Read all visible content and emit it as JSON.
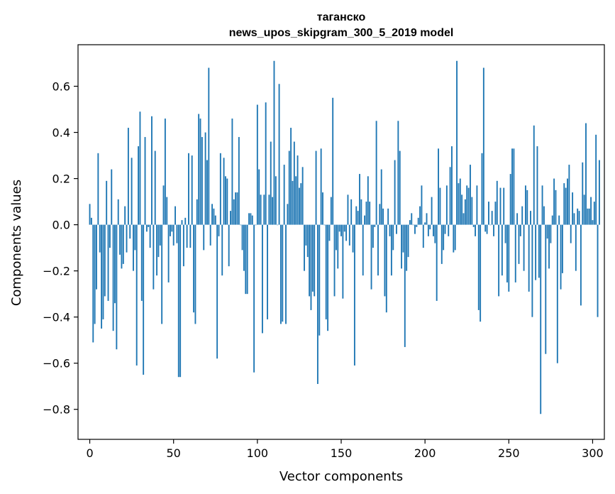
{
  "chart_data": {
    "type": "bar",
    "title": "таганско",
    "subtitle": "news_upos_skipgram_300_5_2019 model",
    "xlabel": "Vector components",
    "ylabel": "Components values",
    "xlim": [
      -7,
      307
    ],
    "ylim": [
      -0.93,
      0.78
    ],
    "xticks": [
      0,
      50,
      100,
      150,
      200,
      250,
      300
    ],
    "yticks": [
      -0.8,
      -0.6,
      -0.4,
      -0.2,
      0.0,
      0.2,
      0.4,
      0.6
    ],
    "xtick_labels": [
      "0",
      "50",
      "100",
      "150",
      "200",
      "250",
      "300"
    ],
    "ytick_labels": [
      "−0.8",
      "−0.6",
      "−0.4",
      "−0.2",
      "0.0",
      "0.2",
      "0.4",
      "0.6"
    ],
    "bar_color": "#1f77b4",
    "values": [
      0.09,
      0.03,
      -0.51,
      -0.43,
      -0.28,
      0.31,
      -0.12,
      -0.45,
      -0.41,
      -0.31,
      0.19,
      -0.33,
      -0.1,
      0.24,
      -0.46,
      -0.34,
      -0.54,
      0.11,
      -0.13,
      -0.19,
      -0.17,
      0.08,
      -0.12,
      0.42,
      -0.06,
      0.29,
      -0.2,
      -0.11,
      -0.61,
      0.34,
      0.49,
      -0.33,
      -0.65,
      0.38,
      -0.03,
      -0.01,
      -0.1,
      0.47,
      -0.28,
      0.32,
      -0.22,
      -0.14,
      -0.09,
      -0.43,
      0.17,
      0.46,
      0.12,
      -0.25,
      -0.05,
      -0.03,
      -0.09,
      0.08,
      -0.08,
      -0.66,
      -0.66,
      0.02,
      -0.18,
      0.03,
      -0.1,
      0.31,
      -0.1,
      0.3,
      -0.38,
      -0.43,
      0.11,
      0.48,
      0.46,
      0.38,
      -0.11,
      0.4,
      0.28,
      0.68,
      -0.09,
      0.09,
      0.07,
      0.04,
      -0.58,
      -0.05,
      0.31,
      -0.22,
      0.29,
      0.21,
      0.2,
      -0.18,
      0.06,
      0.46,
      0.11,
      0.14,
      0.14,
      0.38,
      0.0,
      -0.11,
      -0.2,
      -0.3,
      -0.3,
      0.05,
      0.05,
      0.04,
      -0.64,
      0.0,
      0.52,
      0.24,
      0.13,
      -0.47,
      0.13,
      0.53,
      -0.41,
      0.13,
      0.36,
      0.12,
      0.71,
      0.21,
      0.0,
      0.61,
      -0.43,
      -0.42,
      0.26,
      -0.43,
      0.09,
      0.32,
      0.42,
      0.19,
      0.36,
      0.21,
      0.3,
      0.16,
      0.18,
      0.25,
      -0.2,
      -0.09,
      -0.14,
      -0.31,
      -0.37,
      -0.29,
      -0.31,
      0.32,
      -0.69,
      -0.48,
      0.33,
      0.14,
      0.0,
      -0.41,
      -0.46,
      -0.07,
      0.12,
      0.55,
      -0.31,
      -0.11,
      -0.19,
      -0.03,
      -0.05,
      -0.32,
      -0.03,
      -0.07,
      0.13,
      -0.09,
      0.11,
      -0.12,
      -0.61,
      0.08,
      0.06,
      0.22,
      0.11,
      -0.22,
      0.04,
      0.1,
      0.21,
      0.1,
      -0.28,
      -0.1,
      -0.01,
      0.45,
      -0.22,
      0.09,
      0.24,
      0.07,
      -0.31,
      -0.38,
      0.07,
      -0.05,
      -0.22,
      -0.11,
      0.28,
      -0.04,
      0.45,
      0.32,
      -0.19,
      -0.12,
      -0.53,
      -0.2,
      -0.14,
      0.02,
      0.05,
      0.0,
      -0.04,
      -0.01,
      0.03,
      0.08,
      0.17,
      -0.1,
      0.01,
      0.05,
      -0.05,
      -0.02,
      0.12,
      -0.05,
      -0.08,
      -0.33,
      0.33,
      0.16,
      -0.17,
      -0.11,
      -0.04,
      0.17,
      -0.05,
      0.25,
      0.34,
      -0.12,
      -0.11,
      0.71,
      0.18,
      0.2,
      0.13,
      0.05,
      0.11,
      0.17,
      0.16,
      0.26,
      0.12,
      -0.01,
      -0.05,
      0.17,
      -0.37,
      -0.42,
      0.31,
      0.68,
      -0.03,
      -0.04,
      0.1,
      0.0,
      0.06,
      -0.05,
      0.1,
      0.19,
      -0.31,
      0.16,
      -0.22,
      0.16,
      -0.08,
      -0.25,
      -0.29,
      0.22,
      0.33,
      0.33,
      -0.25,
      0.05,
      -0.17,
      -0.05,
      0.08,
      -0.2,
      0.17,
      0.15,
      -0.29,
      0.06,
      -0.4,
      0.43,
      -0.24,
      0.34,
      -0.23,
      -0.82,
      0.17,
      0.08,
      -0.56,
      -0.06,
      -0.19,
      -0.08,
      0.04,
      0.2,
      0.15,
      -0.6,
      0.04,
      -0.28,
      -0.21,
      0.18,
      0.16,
      0.2,
      0.26,
      -0.08,
      0.14,
      0.05,
      -0.2,
      0.07,
      0.06,
      -0.35,
      0.27,
      0.13,
      0.44,
      0.07,
      0.07,
      0.12,
      0.02,
      0.1,
      0.39,
      -0.4,
      0.28
    ]
  }
}
